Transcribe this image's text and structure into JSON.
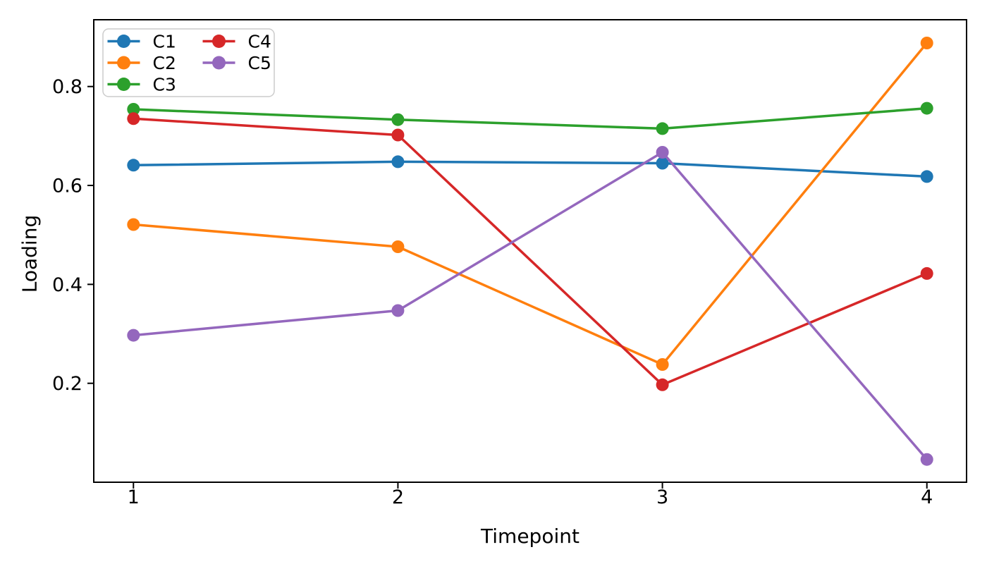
{
  "figure": {
    "background": "#ffffff"
  },
  "chart_data": {
    "type": "line",
    "title": "",
    "xlabel": "Timepoint",
    "ylabel": "Loading",
    "x": [
      1,
      2,
      3,
      4
    ],
    "series": [
      {
        "name": "C1",
        "color": "#1f77b4",
        "values": [
          0.641,
          0.648,
          0.645,
          0.618
        ]
      },
      {
        "name": "C2",
        "color": "#ff7f0e",
        "values": [
          0.521,
          0.476,
          0.238,
          0.888
        ]
      },
      {
        "name": "C3",
        "color": "#2ca02c",
        "values": [
          0.754,
          0.733,
          0.715,
          0.756
        ]
      },
      {
        "name": "C4",
        "color": "#d62728",
        "values": [
          0.735,
          0.702,
          0.197,
          0.422
        ]
      },
      {
        "name": "C5",
        "color": "#9467bd",
        "values": [
          0.297,
          0.347,
          0.667,
          0.046
        ]
      }
    ],
    "xlim": [
      0.85,
      4.15
    ],
    "ylim": [
      0.0,
      0.935
    ],
    "xticks": [
      1,
      2,
      3,
      4
    ],
    "xticklabels": [
      "1",
      "2",
      "3",
      "4"
    ],
    "yticks": [
      0.2,
      0.4,
      0.6,
      0.8
    ],
    "yticklabels": [
      "0.2",
      "0.4",
      "0.6",
      "0.8"
    ],
    "grid": false,
    "legend": {
      "position": "upper left",
      "ncol": 2,
      "entries": [
        "C1",
        "C2",
        "C3",
        "C4",
        "C5"
      ],
      "border_color": "#cccccc",
      "background": "#ffffff"
    },
    "axis_color": "#000000",
    "marker": "circle"
  }
}
